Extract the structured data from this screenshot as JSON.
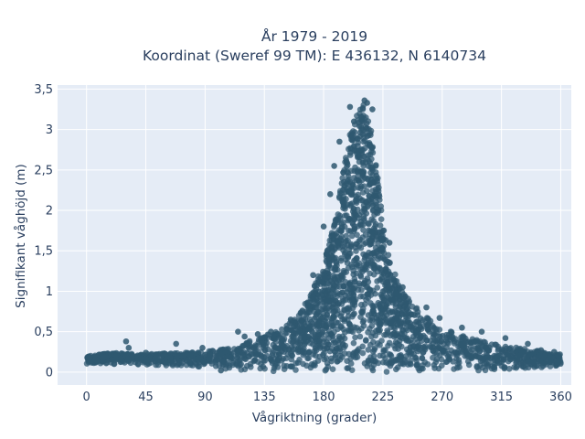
{
  "chart_data": {
    "type": "scatter",
    "title_line1": "År 1979 - 2019",
    "title_line2": "Koordinat (Sweref 99 TM): E 436132, N 6140734",
    "xlabel": "Vågriktning (grader)",
    "ylabel": "Signifikant våghöjd (m)",
    "xlim": [
      -22,
      368
    ],
    "ylim": [
      -0.16,
      3.55
    ],
    "x_ticks": [
      0,
      45,
      90,
      135,
      180,
      225,
      270,
      315,
      360
    ],
    "y_ticks": [
      0,
      0.5,
      1,
      1.5,
      2,
      2.5,
      3,
      3.5
    ],
    "y_tick_labels": [
      "0",
      "0,5",
      "1",
      "1,5",
      "2",
      "2,5",
      "3",
      "3,5"
    ],
    "grid": true,
    "marker_color": "#2f5870",
    "envelope": {
      "x": [
        0,
        20,
        45,
        70,
        90,
        110,
        135,
        150,
        160,
        170,
        180,
        190,
        195,
        200,
        205,
        210,
        215,
        220,
        225,
        230,
        240,
        255,
        270,
        290,
        315,
        340,
        360
      ],
      "upper": [
        0.2,
        0.24,
        0.22,
        0.24,
        0.25,
        0.3,
        0.45,
        0.55,
        0.7,
        0.95,
        1.35,
        2.0,
        2.5,
        2.95,
        3.2,
        3.38,
        3.1,
        2.6,
        1.85,
        1.4,
        1.0,
        0.72,
        0.55,
        0.42,
        0.33,
        0.27,
        0.22
      ],
      "lower": [
        0.1,
        0.1,
        0.08,
        0.08,
        0.06,
        0.03,
        0.0,
        0.0,
        0.0,
        0.0,
        0.0,
        0.0,
        0.0,
        0.0,
        0.0,
        0.0,
        0.0,
        0.0,
        0.0,
        0.0,
        0.0,
        0.0,
        0.0,
        0.0,
        0.02,
        0.05,
        0.08
      ]
    },
    "outliers": [
      {
        "x": 30,
        "y": 0.38
      },
      {
        "x": 32,
        "y": 0.3
      },
      {
        "x": 45,
        "y": 0.24
      },
      {
        "x": 68,
        "y": 0.35
      },
      {
        "x": 88,
        "y": 0.3
      },
      {
        "x": 115,
        "y": 0.5
      },
      {
        "x": 120,
        "y": 0.44
      },
      {
        "x": 130,
        "y": 0.47
      },
      {
        "x": 140,
        "y": 0.5
      },
      {
        "x": 155,
        "y": 0.65
      },
      {
        "x": 172,
        "y": 1.2
      },
      {
        "x": 180,
        "y": 1.8
      },
      {
        "x": 185,
        "y": 2.2
      },
      {
        "x": 188,
        "y": 2.55
      },
      {
        "x": 192,
        "y": 2.85
      },
      {
        "x": 200,
        "y": 3.28
      },
      {
        "x": 203,
        "y": 3.1
      },
      {
        "x": 211,
        "y": 3.36
      },
      {
        "x": 213,
        "y": 3.33
      },
      {
        "x": 217,
        "y": 3.25
      },
      {
        "x": 230,
        "y": 1.6
      },
      {
        "x": 240,
        "y": 1.05
      },
      {
        "x": 258,
        "y": 0.8
      },
      {
        "x": 268,
        "y": 0.67
      },
      {
        "x": 285,
        "y": 0.55
      },
      {
        "x": 300,
        "y": 0.5
      },
      {
        "x": 318,
        "y": 0.42
      },
      {
        "x": 335,
        "y": 0.35
      },
      {
        "x": 345,
        "y": 0.27
      },
      {
        "x": 355,
        "y": 0.25
      },
      {
        "x": 102,
        "y": 0.02
      }
    ]
  }
}
